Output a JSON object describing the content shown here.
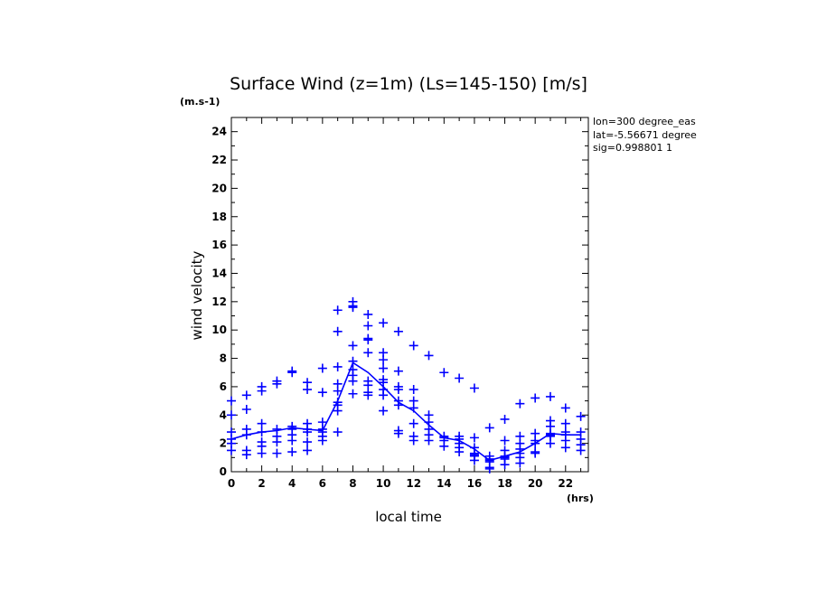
{
  "chart_data": {
    "type": "scatter",
    "title": "Surface Wind (z=1m) (Ls=145-150) [m/s]",
    "y_unit": "(m.s-1)",
    "x_unit": "(hrs)",
    "xlabel": "local time",
    "ylabel": "wind velocity",
    "info_lines": [
      "lon=300 degree_eas",
      "lat=-5.56671 degree",
      "sig=0.998801 1"
    ],
    "xlim": [
      0,
      23.5
    ],
    "ylim": [
      0,
      25
    ],
    "x_ticks": [
      "0",
      "2",
      "4",
      "6",
      "8",
      "10",
      "12",
      "14",
      "16",
      "18",
      "20",
      "22"
    ],
    "y_ticks": [
      "0",
      "2",
      "4",
      "6",
      "8",
      "10",
      "12",
      "14",
      "16",
      "18",
      "20",
      "22",
      "24"
    ],
    "grid": false,
    "series": [
      {
        "type": "line",
        "color": "#0000ff",
        "x": [
          0,
          1,
          2,
          3,
          4,
          5,
          6,
          7,
          8,
          9,
          10,
          11,
          12,
          13,
          14,
          15,
          16,
          17,
          18,
          19,
          20,
          21,
          22,
          23
        ],
        "values": [
          2.3,
          2.6,
          2.8,
          2.9,
          3.1,
          3.0,
          2.9,
          5.0,
          7.7,
          7.0,
          6.0,
          4.9,
          4.3,
          3.3,
          2.4,
          2.2,
          1.6,
          0.8,
          1.1,
          1.4,
          2.0,
          2.7,
          2.6,
          2.6
        ]
      },
      {
        "type": "scatter",
        "marker": "plus",
        "color": "#0000ff",
        "points": [
          [
            0,
            5.0
          ],
          [
            0,
            4.0
          ],
          [
            0,
            2.8
          ],
          [
            0,
            2.3
          ],
          [
            0,
            2.0
          ],
          [
            0,
            1.5
          ],
          [
            1,
            5.4
          ],
          [
            1,
            4.4
          ],
          [
            1,
            3.0
          ],
          [
            1,
            2.6
          ],
          [
            1,
            1.5
          ],
          [
            1,
            1.2
          ],
          [
            2,
            6.0
          ],
          [
            2,
            5.7
          ],
          [
            2,
            3.4
          ],
          [
            2,
            2.8
          ],
          [
            2,
            2.1
          ],
          [
            2,
            1.8
          ],
          [
            2,
            1.3
          ],
          [
            3,
            6.4
          ],
          [
            3,
            6.2
          ],
          [
            3,
            3.0
          ],
          [
            3,
            2.5
          ],
          [
            3,
            2.1
          ],
          [
            3,
            1.3
          ],
          [
            4,
            7.1
          ],
          [
            4,
            7.0
          ],
          [
            4,
            3.2
          ],
          [
            4,
            3.0
          ],
          [
            4,
            2.6
          ],
          [
            4,
            2.2
          ],
          [
            4,
            1.4
          ],
          [
            5,
            6.3
          ],
          [
            5,
            5.8
          ],
          [
            5,
            3.4
          ],
          [
            5,
            3.0
          ],
          [
            5,
            2.8
          ],
          [
            5,
            2.1
          ],
          [
            5,
            1.5
          ],
          [
            6,
            7.3
          ],
          [
            6,
            5.6
          ],
          [
            6,
            3.5
          ],
          [
            6,
            3.0
          ],
          [
            6,
            2.8
          ],
          [
            6,
            2.5
          ],
          [
            6,
            2.2
          ],
          [
            7,
            11.4
          ],
          [
            7,
            9.9
          ],
          [
            7,
            7.4
          ],
          [
            7,
            6.2
          ],
          [
            7,
            5.7
          ],
          [
            7,
            4.9
          ],
          [
            7,
            4.7
          ],
          [
            7,
            4.3
          ],
          [
            7,
            2.8
          ],
          [
            8,
            12.0
          ],
          [
            8,
            11.7
          ],
          [
            8,
            11.6
          ],
          [
            8,
            8.9
          ],
          [
            8,
            7.8
          ],
          [
            8,
            7.2
          ],
          [
            8,
            6.8
          ],
          [
            8,
            6.4
          ],
          [
            8,
            5.5
          ],
          [
            9,
            11.1
          ],
          [
            9,
            10.3
          ],
          [
            9,
            9.4
          ],
          [
            9,
            9.3
          ],
          [
            9,
            8.4
          ],
          [
            9,
            6.4
          ],
          [
            9,
            6.1
          ],
          [
            9,
            5.6
          ],
          [
            9,
            5.4
          ],
          [
            10,
            10.5
          ],
          [
            10,
            8.4
          ],
          [
            10,
            7.9
          ],
          [
            10,
            7.3
          ],
          [
            10,
            6.5
          ],
          [
            10,
            6.3
          ],
          [
            10,
            5.8
          ],
          [
            10,
            5.4
          ],
          [
            10,
            4.3
          ],
          [
            11,
            9.9
          ],
          [
            11,
            7.1
          ],
          [
            11,
            6.0
          ],
          [
            11,
            5.8
          ],
          [
            11,
            5.0
          ],
          [
            11,
            4.7
          ],
          [
            11,
            2.9
          ],
          [
            11,
            2.7
          ],
          [
            12,
            8.9
          ],
          [
            12,
            5.8
          ],
          [
            12,
            5.0
          ],
          [
            12,
            4.5
          ],
          [
            12,
            3.4
          ],
          [
            12,
            2.5
          ],
          [
            12,
            2.2
          ],
          [
            13,
            8.2
          ],
          [
            13,
            4.0
          ],
          [
            13,
            3.5
          ],
          [
            13,
            3.0
          ],
          [
            13,
            2.6
          ],
          [
            13,
            2.2
          ],
          [
            14,
            7.0
          ],
          [
            14,
            2.5
          ],
          [
            14,
            2.4
          ],
          [
            14,
            2.2
          ],
          [
            14,
            1.8
          ],
          [
            15,
            6.6
          ],
          [
            15,
            2.5
          ],
          [
            15,
            2.3
          ],
          [
            15,
            2.0
          ],
          [
            15,
            1.7
          ],
          [
            15,
            1.4
          ],
          [
            16,
            5.9
          ],
          [
            16,
            2.4
          ],
          [
            16,
            1.7
          ],
          [
            16,
            1.3
          ],
          [
            16,
            1.2
          ],
          [
            16,
            1.1
          ],
          [
            16,
            0.8
          ],
          [
            17,
            3.1
          ],
          [
            17,
            1.1
          ],
          [
            17,
            0.9
          ],
          [
            17,
            0.8
          ],
          [
            17,
            0.7
          ],
          [
            17,
            0.3
          ],
          [
            17,
            0.2
          ],
          [
            18,
            3.7
          ],
          [
            18,
            2.2
          ],
          [
            18,
            1.5
          ],
          [
            18,
            1.1
          ],
          [
            18,
            1.0
          ],
          [
            18,
            0.9
          ],
          [
            18,
            0.5
          ],
          [
            19,
            4.8
          ],
          [
            19,
            2.5
          ],
          [
            19,
            2.0
          ],
          [
            19,
            1.6
          ],
          [
            19,
            1.3
          ],
          [
            19,
            1.0
          ],
          [
            19,
            0.6
          ],
          [
            20,
            5.2
          ],
          [
            20,
            2.7
          ],
          [
            20,
            2.2
          ],
          [
            20,
            2.0
          ],
          [
            20,
            1.4
          ],
          [
            20,
            1.3
          ],
          [
            21,
            5.3
          ],
          [
            21,
            3.6
          ],
          [
            21,
            3.2
          ],
          [
            21,
            2.7
          ],
          [
            21,
            2.6
          ],
          [
            21,
            2.5
          ],
          [
            21,
            2.0
          ],
          [
            22,
            4.5
          ],
          [
            22,
            3.4
          ],
          [
            22,
            2.8
          ],
          [
            22,
            2.6
          ],
          [
            22,
            2.2
          ],
          [
            22,
            1.7
          ],
          [
            23,
            3.9
          ],
          [
            23,
            2.8
          ],
          [
            23,
            2.3
          ],
          [
            23,
            1.9
          ],
          [
            23,
            1.5
          ]
        ]
      }
    ]
  }
}
